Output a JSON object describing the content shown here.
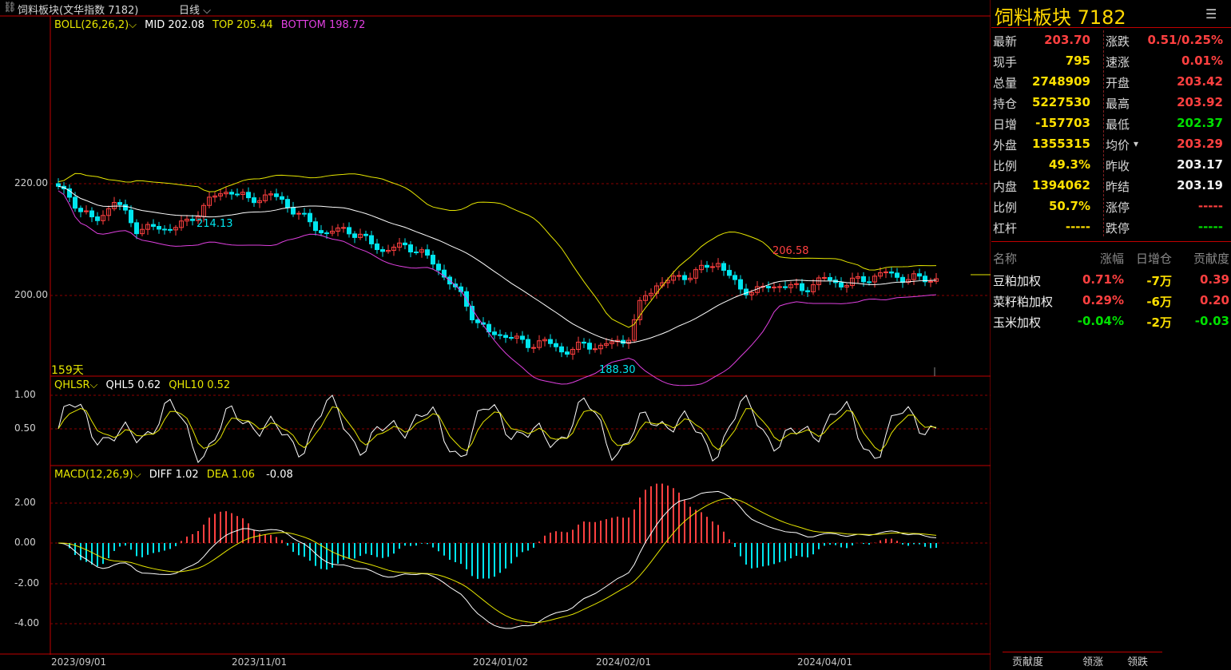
{
  "header": {
    "link_icon": "chain-link-icon",
    "title": "饲料板块(文华指数 7182)",
    "period": "日线"
  },
  "main_panel": {
    "indicator": "BOLL(26,26,2)",
    "mid": "MID 202.08",
    "top": "TOP 205.44",
    "bottom": "BOTTOM 198.72",
    "y_labels": [
      "220.00",
      "200.00"
    ],
    "days_label": "159天",
    "annotations": {
      "low1": "214.13",
      "high1": "206.58",
      "low2": "188.30"
    }
  },
  "qhl_panel": {
    "indicator": "QHLSR",
    "qhl5": "QHL5 0.62",
    "qhl10": "QHL10 0.52",
    "y_labels": [
      "1.00",
      "0.50"
    ]
  },
  "macd_panel": {
    "indicator": "MACD(12,26,9)",
    "diff": "DIFF 1.02",
    "dea": "DEA 1.06",
    "macd": "-0.08",
    "y_labels": [
      "2.00",
      "0.00",
      "-2.00",
      "-4.00"
    ]
  },
  "x_labels": [
    "2023/09/01",
    "2023/11/01",
    "2024/01/02",
    "2024/02/01",
    "2024/04/01"
  ],
  "quote": {
    "title": "饲料板块  7182",
    "menu_icon": "hamburger-menu-icon",
    "rows": [
      {
        "l1": "最新",
        "v1": "203.70",
        "c1": "red",
        "l2": "涨跌",
        "v2": "0.51/0.25%",
        "c2": "red"
      },
      {
        "l1": "现手",
        "v1": "795",
        "c1": "yel",
        "l2": "速涨",
        "v2": "0.01%",
        "c2": "red"
      },
      {
        "l1": "总量",
        "v1": "2748909",
        "c1": "yel",
        "l2": "开盘",
        "v2": "203.42",
        "c2": "red"
      },
      {
        "l1": "持仓",
        "v1": "5227530",
        "c1": "yel",
        "l2": "最高",
        "v2": "203.92",
        "c2": "red"
      },
      {
        "l1": "日增",
        "v1": "-157703",
        "c1": "yel",
        "l2": "最低",
        "v2": "202.37",
        "c2": "green"
      },
      {
        "l1": "外盘",
        "v1": "1355315",
        "c1": "yel",
        "l2": "均价",
        "v2": "203.29",
        "c2": "red"
      },
      {
        "l1": "比例",
        "v1": "49.3%",
        "c1": "yel",
        "l2": "昨收",
        "v2": "203.17",
        "c2": "wht"
      },
      {
        "l1": "内盘",
        "v1": "1394062",
        "c1": "yel",
        "l2": "昨结",
        "v2": "203.19",
        "c2": "wht"
      },
      {
        "l1": "比例",
        "v1": "50.7%",
        "c1": "yel",
        "l2": "涨停",
        "v2": "-----",
        "c2": "red"
      },
      {
        "l1": "杠杆",
        "v1": "-----",
        "c1": "yel",
        "l2": "跌停",
        "v2": "-----",
        "c2": "green"
      }
    ]
  },
  "contrib": {
    "headers": [
      "名称",
      "涨幅",
      "日增仓",
      "贡献度"
    ],
    "rows": [
      {
        "name": "豆粕加权",
        "chg": "0.71%",
        "oi": "-7万",
        "con": "0.39",
        "color": "red"
      },
      {
        "name": "菜籽粕加权",
        "chg": "0.29%",
        "oi": "-6万",
        "con": "0.20",
        "color": "red"
      },
      {
        "name": "玉米加权",
        "chg": "-0.04%",
        "oi": "-2万",
        "con": "-0.03",
        "color": "green"
      }
    ]
  },
  "bottom_tabs": [
    "贡献度",
    "领涨",
    "领跌"
  ],
  "colors": {
    "up": "#ff4040",
    "down": "#00e5ee",
    "mid": "#ffffff",
    "top": "#e6e600",
    "bottom": "#e040e0",
    "grid": "#8b0000",
    "border": "#c00000"
  },
  "chart_data": {
    "type": "candlestick",
    "boll": {
      "mid": 202.08,
      "top": 205.44,
      "bottom": 198.72
    },
    "last": {
      "close": 203.7,
      "open": 203.42,
      "high": 203.92,
      "low": 202.37
    },
    "qhl": {
      "qhl5": 0.62,
      "qhl10": 0.52
    },
    "macd": {
      "diff": 1.02,
      "dea": 1.06,
      "macd": -0.08
    }
  }
}
